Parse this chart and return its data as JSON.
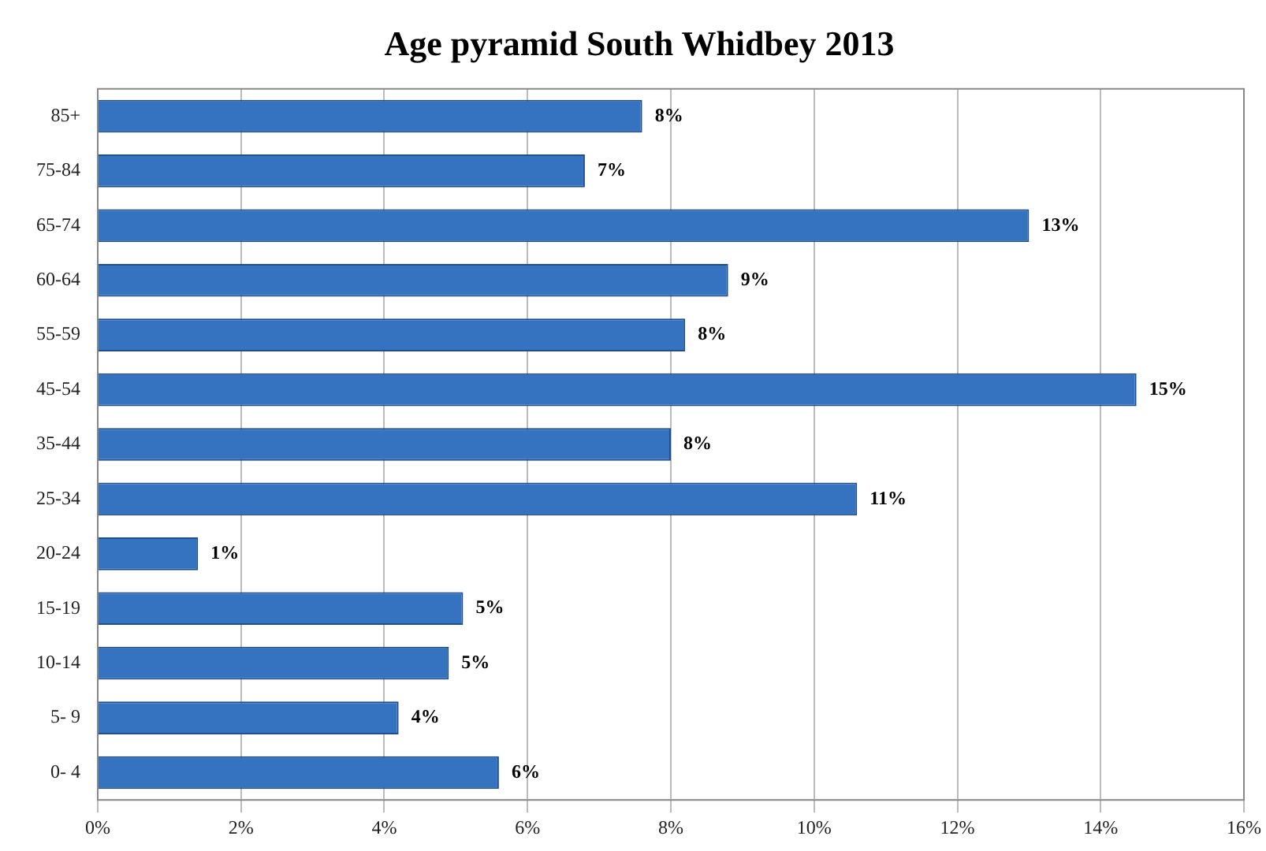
{
  "chart_data": {
    "type": "bar",
    "orientation": "horizontal",
    "title": "Age pyramid South Whidbey 2013",
    "categories": [
      "85+",
      "75-84",
      "65-74",
      "60-64",
      "55-59",
      "45-54",
      "35-44",
      "25-34",
      "20-24",
      "15-19",
      "10-14",
      "5- 9",
      "0- 4"
    ],
    "values": [
      7.6,
      6.8,
      13.0,
      8.8,
      8.2,
      14.5,
      8.0,
      10.6,
      1.4,
      5.1,
      4.9,
      4.2,
      5.6
    ],
    "value_labels": [
      "8%",
      "7%",
      "13%",
      "9%",
      "8%",
      "15%",
      "8%",
      "11%",
      "1%",
      "5%",
      "5%",
      "4%",
      "6%"
    ],
    "color": "#3572c0",
    "xlim": [
      0,
      16
    ],
    "xticks": [
      {
        "value": 0,
        "label": "0%"
      },
      {
        "value": 2,
        "label": "2%"
      },
      {
        "value": 4,
        "label": "4%"
      },
      {
        "value": 6,
        "label": "6%"
      },
      {
        "value": 8,
        "label": "8%"
      },
      {
        "value": 10,
        "label": "10%"
      },
      {
        "value": 12,
        "label": "12%"
      },
      {
        "value": 14,
        "label": "14%"
      },
      {
        "value": 16,
        "label": "16%"
      }
    ],
    "grid": "x",
    "legend": false
  }
}
